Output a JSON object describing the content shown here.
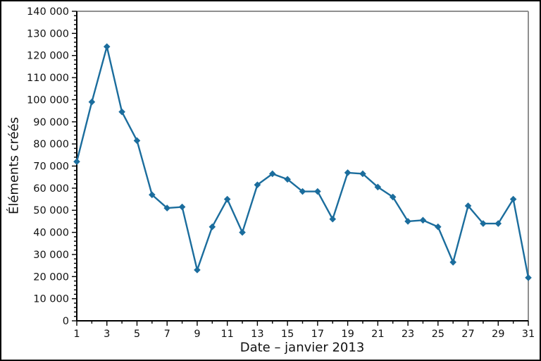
{
  "figure": {
    "background": "#ffffff",
    "frame_border_color": "#000000",
    "axis_color": "#000000",
    "spine_color": "#8f8f8f",
    "text_color": "#111111"
  },
  "chart_data": {
    "type": "line",
    "title": "",
    "xlabel": "Date – janvier 2013",
    "ylabel": "Éléments créés",
    "x": [
      1,
      2,
      3,
      4,
      5,
      6,
      7,
      8,
      9,
      10,
      11,
      12,
      13,
      14,
      15,
      16,
      17,
      18,
      19,
      20,
      21,
      22,
      23,
      24,
      25,
      26,
      27,
      28,
      29,
      30,
      31
    ],
    "series": [
      {
        "name": "Éléments créés",
        "color": "#1b6d9d",
        "marker": "diamond",
        "values": [
          72000,
          99000,
          124000,
          94500,
          81500,
          57000,
          51000,
          51500,
          23000,
          42500,
          55000,
          40000,
          61500,
          66500,
          64000,
          58500,
          58500,
          46000,
          67000,
          66500,
          60500,
          56000,
          45000,
          45500,
          42500,
          26500,
          52000,
          44000,
          44000,
          55000,
          19500
        ]
      }
    ],
    "xlim": [
      1,
      31
    ],
    "ylim": [
      0,
      140000
    ],
    "x_major_tick_step": 2,
    "x_major_tick_start": 1,
    "x_minor_tick_step": 1,
    "y_major_tick_step": 10000,
    "y_minor_tick_step": 2000,
    "y_tick_labels": [
      "0",
      "10 000",
      "20 000",
      "30 000",
      "40 000",
      "50 000",
      "60 000",
      "70 000",
      "80 000",
      "90 000",
      "100 000",
      "110 000",
      "120 000",
      "130 000",
      "140 000"
    ],
    "x_tick_labels": [
      "1",
      "3",
      "5",
      "7",
      "9",
      "11",
      "13",
      "15",
      "17",
      "19",
      "21",
      "23",
      "25",
      "27",
      "29",
      "31"
    ],
    "grid": false,
    "legend": "none"
  }
}
